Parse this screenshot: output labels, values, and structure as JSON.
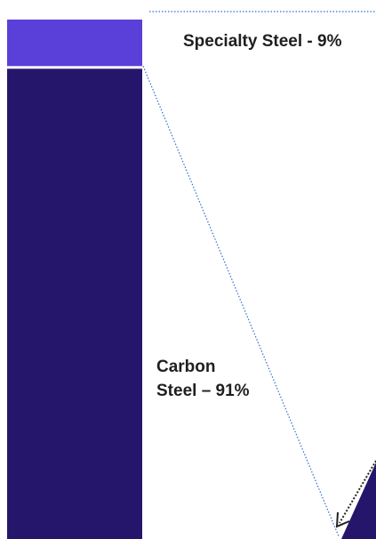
{
  "chart_data": {
    "type": "bar",
    "stacked": true,
    "categories": [
      "Steel"
    ],
    "series": [
      {
        "name": "Carbon Steel",
        "value": 91,
        "color": "#26166b"
      },
      {
        "name": "Specialty Steel",
        "value": 9,
        "color": "#5b3fd9"
      }
    ],
    "unit": "%",
    "labels": {
      "specialty": "Specialty Steel - 9%",
      "carbon_line1": "Carbon",
      "carbon_line2": "Steel – 91%"
    },
    "connector_color": "#2f6fc9",
    "arrow_color": "#222222"
  }
}
